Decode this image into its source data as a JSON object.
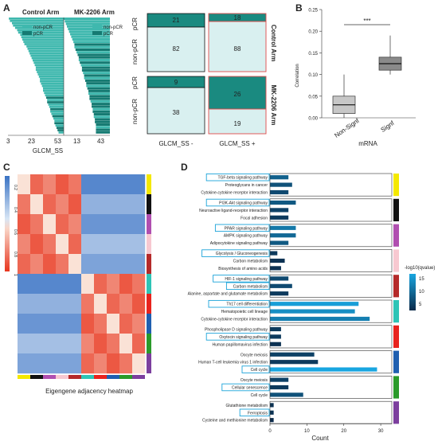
{
  "panel_labels": {
    "a": "A",
    "b": "B",
    "c": "C",
    "d": "D"
  },
  "colors": {
    "teal": "#3fb8ae",
    "dark_teal": "#157a72",
    "light_cell": "#d9f0f0",
    "dark_cell": "#1a8a80",
    "red_border": "#e04a4a",
    "box_grey_light": "#c7c7c7",
    "box_grey_dark": "#8a8a8a",
    "bar_low": "#0b2a4a",
    "bar_high": "#19a6e0",
    "highlight_box": "#1aa3d9"
  },
  "chart_data": [
    {
      "id": "A-left",
      "type": "bar",
      "title": "",
      "titles": [
        "Control Arm",
        "MK-2206 Arm"
      ],
      "legend": [
        "non-pCR",
        "pCR"
      ],
      "xlabel": "GLCM_SS",
      "ticks_control": [
        "3",
        "23",
        "53"
      ],
      "ticks_mk": [
        "13",
        "43"
      ],
      "series_control": [
        53,
        52,
        50,
        49,
        47,
        45,
        44,
        42,
        41,
        40,
        39,
        38,
        36,
        35,
        34,
        33,
        32,
        31,
        30,
        29,
        28,
        27,
        27,
        26,
        25,
        24,
        23,
        23,
        22,
        21,
        20,
        20,
        19,
        18,
        17,
        16,
        16,
        15,
        14,
        13,
        13,
        12,
        11,
        10,
        9,
        9,
        8,
        7,
        6,
        5
      ],
      "series_mk": [
        43,
        42,
        41,
        40,
        39,
        38,
        37,
        36,
        35,
        34,
        33,
        33,
        32,
        31,
        30,
        29,
        29,
        28,
        27,
        26,
        26,
        25,
        24,
        24,
        23,
        22,
        22,
        21,
        20,
        20,
        19,
        19,
        18,
        17,
        17,
        16,
        16,
        15,
        15,
        14,
        14,
        13,
        13,
        13,
        13
      ],
      "pcr_flags_control": [
        0,
        0,
        0,
        0,
        0,
        0,
        0,
        0,
        0,
        0,
        0,
        0,
        0,
        0,
        0,
        0,
        0,
        0,
        0,
        0,
        0,
        0,
        0,
        0,
        0,
        0,
        0,
        0,
        0,
        0,
        0,
        0,
        0,
        0,
        1,
        0,
        1,
        0,
        0,
        1,
        0,
        0,
        1,
        0,
        0,
        1,
        0,
        1,
        1,
        0
      ],
      "pcr_flags_mk": [
        0,
        0,
        0,
        0,
        0,
        0,
        0,
        0,
        0,
        0,
        1,
        0,
        1,
        0,
        1,
        1,
        0,
        1,
        0,
        1,
        1,
        0,
        1,
        0,
        1,
        1,
        0,
        1,
        1,
        0,
        1,
        1,
        0,
        1,
        1,
        0,
        1,
        1,
        0,
        1,
        1,
        1,
        0,
        1,
        1
      ]
    },
    {
      "id": "A-right",
      "type": "table",
      "columns": [
        "GLCM_SS -",
        "GLCM_SS +"
      ],
      "row_labels": [
        "pCR",
        "non-pCR"
      ],
      "groups": [
        "Control Arm",
        "MK-2206 Arm"
      ],
      "control": {
        "pcr": [
          21,
          18
        ],
        "nonpcr": [
          82,
          88
        ]
      },
      "mk": {
        "pcr": [
          9,
          26
        ],
        "nonpcr": [
          38,
          19
        ]
      }
    },
    {
      "id": "B",
      "type": "box",
      "categories": [
        "Non-Signf",
        "Signf"
      ],
      "xlabel": "mRNA",
      "ylabel": "Correlation",
      "yticks": [
        "0.00",
        "0.05",
        "0.10",
        "0.15",
        "0.20",
        "0.25"
      ],
      "ylim": [
        0.0,
        0.25
      ],
      "boxes": [
        {
          "min": 0.0,
          "q1": 0.01,
          "median": 0.03,
          "q3": 0.05,
          "max": 0.1
        },
        {
          "min": 0.1,
          "q1": 0.11,
          "median": 0.125,
          "q3": 0.14,
          "max": 0.19
        }
      ],
      "signif": "***"
    },
    {
      "id": "C",
      "type": "heatmap",
      "xlabel": "Eigengene adjacency heatmap",
      "scale_ticks": [
        "0.2",
        "0.4",
        "0.6",
        "0.8",
        "1"
      ],
      "module_colors": [
        "#f4e800",
        "#111111",
        "#b04fb0",
        "#f7c8d0",
        "#b52a2a",
        "#2ec4b6",
        "#e8231e",
        "#1f5fb0",
        "#2a9a2a",
        "#7c3f9e"
      ]
    },
    {
      "id": "D",
      "type": "bar",
      "xlabel": "Count",
      "xticks": [
        "0",
        "10",
        "20",
        "30"
      ],
      "xlim": [
        0,
        33
      ],
      "legend_title": "-log10(qvalue)",
      "legend_ticks": [
        "15",
        "10",
        "5"
      ],
      "groups": [
        {
          "color": "#f4e800",
          "items": [
            {
              "label": "TGF-beta signaling pathway",
              "count": 5,
              "q": 9,
              "hl": true
            },
            {
              "label": "Proteoglycans in cancer",
              "count": 6,
              "q": 7,
              "hl": false
            },
            {
              "label": "Cytokine-cytokine receptor interaction",
              "count": 5,
              "q": 6,
              "hl": false
            }
          ]
        },
        {
          "color": "#111111",
          "items": [
            {
              "label": "PI3K-Akt signaling pathway",
              "count": 7,
              "q": 8,
              "hl": true
            },
            {
              "label": "Neuroactive ligand-receptor interaction",
              "count": 5,
              "q": 5,
              "hl": false
            },
            {
              "label": "Focal adhesion",
              "count": 5,
              "q": 4,
              "hl": false
            }
          ]
        },
        {
          "color": "#b04fb0",
          "items": [
            {
              "label": "PPAR signaling pathway",
              "count": 7,
              "q": 12,
              "hl": true
            },
            {
              "label": "AMPK signaling pathway",
              "count": 7,
              "q": 10,
              "hl": false
            },
            {
              "label": "Adipocytokine signaling pathway",
              "count": 5,
              "q": 8,
              "hl": false
            }
          ]
        },
        {
          "color": "#f7c8d0",
          "items": [
            {
              "label": "Glycolysis / Gluconeogenesis",
              "count": 2,
              "q": 4,
              "hl": true
            },
            {
              "label": "Carbon metabolism",
              "count": 4,
              "q": 3,
              "hl": false
            },
            {
              "label": "Biosynthesis of amino acids",
              "count": 3,
              "q": 3,
              "hl": false
            }
          ]
        },
        {
          "color": "#b52a2a",
          "items": [
            {
              "label": "HIF-1 signaling pathway",
              "count": 5,
              "q": 6,
              "hl": true
            },
            {
              "label": "Carbon metabolism",
              "count": 6,
              "q": 6,
              "hl": true
            },
            {
              "label": "Alanine, aspartate and glutamate metabolism",
              "count": 5,
              "q": 4,
              "hl": false
            }
          ]
        },
        {
          "color": "#2ec4b6",
          "items": [
            {
              "label": "Th17 cell differentiation",
              "count": 24,
              "q": 17,
              "hl": true
            },
            {
              "label": "Hematopoietic cell lineage",
              "count": 23,
              "q": 15,
              "hl": false
            },
            {
              "label": "Cytokine-cytokine receptor interaction",
              "count": 27,
              "q": 13,
              "hl": false
            }
          ]
        },
        {
          "color": "#e8231e",
          "items": [
            {
              "label": "Phospholipase D signaling pathway",
              "count": 3,
              "q": 4,
              "hl": false
            },
            {
              "label": "Oxytocin signaling pathway",
              "count": 3,
              "q": 4,
              "hl": true
            },
            {
              "label": "Human papillomavirus infection",
              "count": 3,
              "q": 3,
              "hl": false
            }
          ]
        },
        {
          "color": "#1f5fb0",
          "items": [
            {
              "label": "Oocyte meiosis",
              "count": 12,
              "q": 5,
              "hl": false
            },
            {
              "label": "Human T-cell leukemia virus 1 infection",
              "count": 13,
              "q": 4,
              "hl": false
            },
            {
              "label": "Cell cycle",
              "count": 29,
              "q": 18,
              "hl": true
            }
          ]
        },
        {
          "color": "#2a9a2a",
          "items": [
            {
              "label": "Oocyte meiosis",
              "count": 5,
              "q": 5,
              "hl": false
            },
            {
              "label": "Cellular senescence",
              "count": 5,
              "q": 4,
              "hl": true
            },
            {
              "label": "Cell cycle",
              "count": 9,
              "q": 7,
              "hl": false
            }
          ]
        },
        {
          "color": "#7c3f9e",
          "items": [
            {
              "label": "Glutathione metabolism",
              "count": 1,
              "q": 3,
              "hl": false
            },
            {
              "label": "Ferroptosis",
              "count": 1,
              "q": 3,
              "hl": true
            },
            {
              "label": "Cysteine and methionine metabolism",
              "count": 1,
              "q": 2,
              "hl": false
            }
          ]
        }
      ]
    }
  ]
}
